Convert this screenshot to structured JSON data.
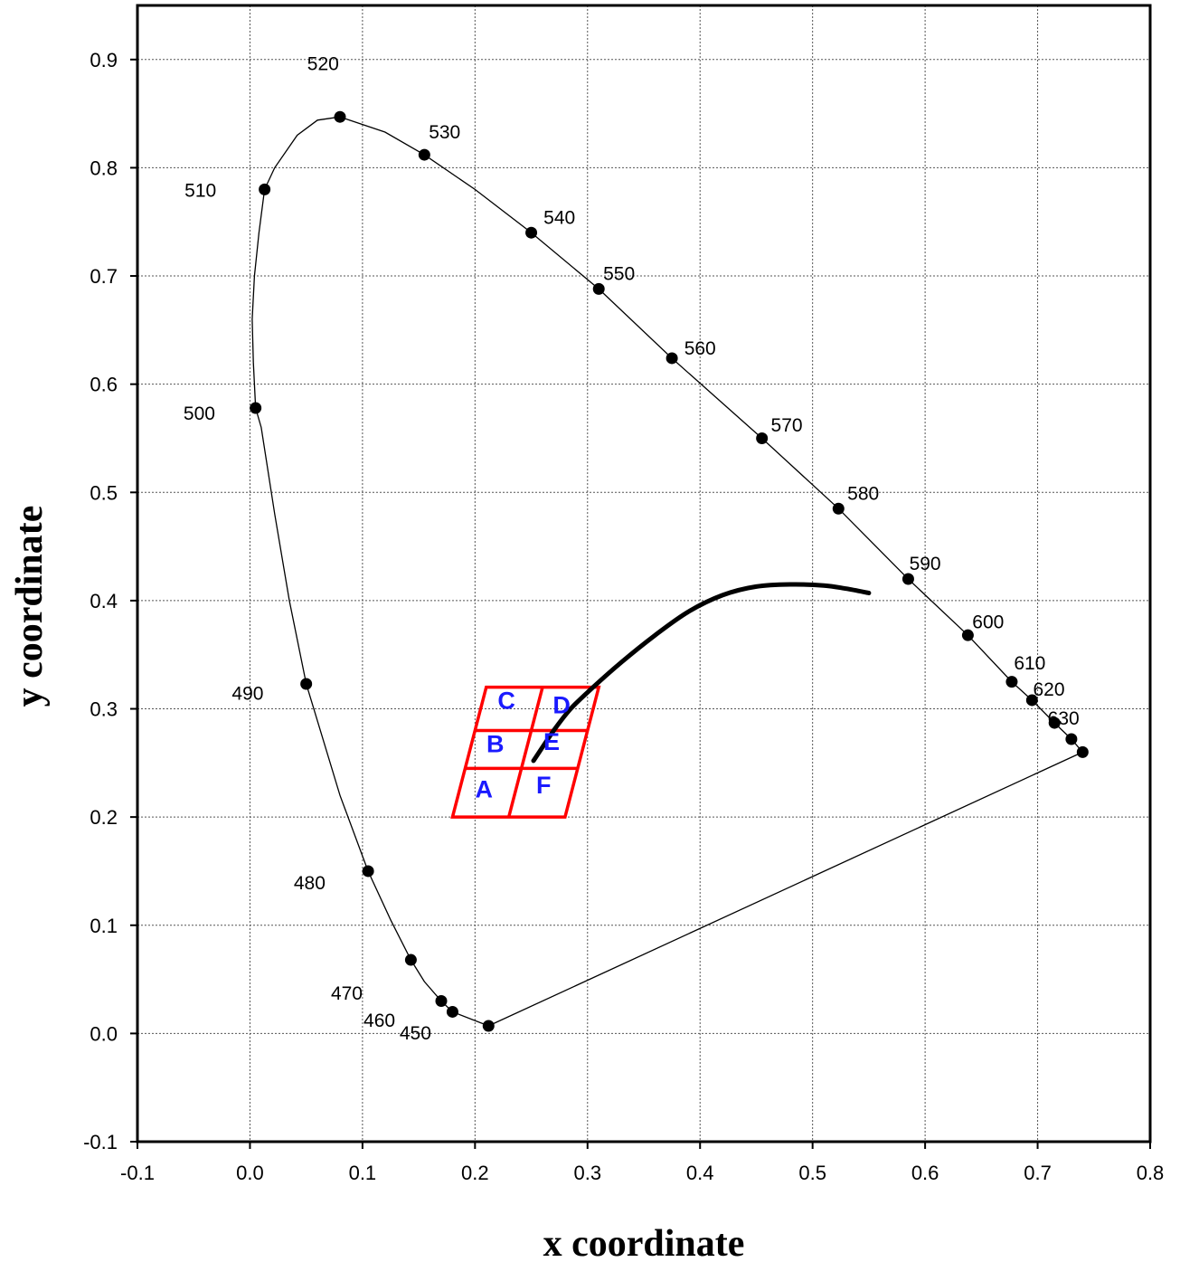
{
  "chart_data": {
    "type": "scatter",
    "title": "",
    "xlabel": "x coordinate",
    "ylabel": "y coordinate",
    "xlim": [
      -0.1,
      0.8
    ],
    "ylim": [
      -0.1,
      0.95
    ],
    "xticks": [
      "-0.1",
      "0.0",
      "0.1",
      "0.2",
      "0.3",
      "0.4",
      "0.5",
      "0.6",
      "0.7",
      "0.8"
    ],
    "yticks": [
      "-0.1",
      "0.0",
      "0.1",
      "0.2",
      "0.3",
      "0.4",
      "0.5",
      "0.6",
      "0.7",
      "0.8",
      "0.9"
    ],
    "grid": true,
    "spectral_locus": [
      [
        0.212,
        0.007
      ],
      [
        0.18,
        0.02
      ],
      [
        0.17,
        0.03
      ],
      [
        0.155,
        0.048
      ],
      [
        0.143,
        0.068
      ],
      [
        0.125,
        0.105
      ],
      [
        0.105,
        0.15
      ],
      [
        0.08,
        0.22
      ],
      [
        0.05,
        0.323
      ],
      [
        0.035,
        0.4
      ],
      [
        0.022,
        0.48
      ],
      [
        0.01,
        0.56
      ],
      [
        0.005,
        0.578
      ],
      [
        0.003,
        0.62
      ],
      [
        0.002,
        0.66
      ],
      [
        0.004,
        0.7
      ],
      [
        0.008,
        0.74
      ],
      [
        0.013,
        0.78
      ],
      [
        0.022,
        0.8
      ],
      [
        0.042,
        0.83
      ],
      [
        0.06,
        0.844
      ],
      [
        0.08,
        0.847
      ],
      [
        0.12,
        0.833
      ],
      [
        0.155,
        0.812
      ],
      [
        0.2,
        0.78
      ],
      [
        0.25,
        0.74
      ],
      [
        0.31,
        0.688
      ],
      [
        0.375,
        0.624
      ],
      [
        0.455,
        0.55
      ],
      [
        0.523,
        0.485
      ],
      [
        0.585,
        0.42
      ],
      [
        0.638,
        0.368
      ],
      [
        0.677,
        0.325
      ],
      [
        0.695,
        0.308
      ],
      [
        0.715,
        0.287
      ],
      [
        0.73,
        0.272
      ],
      [
        0.74,
        0.26
      ]
    ],
    "purple_line": [
      [
        0.74,
        0.26
      ],
      [
        0.212,
        0.007
      ]
    ],
    "wavelength_points": [
      {
        "label": "450",
        "x": 0.212,
        "y": 0.007,
        "lx": -0.065,
        "ly": -0.006
      },
      {
        "label": "460",
        "x": 0.18,
        "y": 0.02,
        "lx": -0.065,
        "ly": -0.007
      },
      {
        "label": "",
        "x": 0.17,
        "y": 0.03,
        "lx": 0,
        "ly": 0
      },
      {
        "label": "470",
        "x": 0.143,
        "y": 0.068,
        "lx": -0.057,
        "ly": -0.03
      },
      {
        "label": "480",
        "x": 0.105,
        "y": 0.15,
        "lx": -0.052,
        "ly": -0.01
      },
      {
        "label": "490",
        "x": 0.05,
        "y": 0.323,
        "lx": -0.052,
        "ly": -0.008
      },
      {
        "label": "500",
        "x": 0.005,
        "y": 0.578,
        "lx": -0.05,
        "ly": -0.004
      },
      {
        "label": "510",
        "x": 0.013,
        "y": 0.78,
        "lx": -0.057,
        "ly": 0
      },
      {
        "label": "520",
        "x": 0.08,
        "y": 0.847,
        "lx": -0.015,
        "ly": 0.05
      },
      {
        "label": "530",
        "x": 0.155,
        "y": 0.812,
        "lx": 0.018,
        "ly": 0.022
      },
      {
        "label": "540",
        "x": 0.25,
        "y": 0.74,
        "lx": 0.025,
        "ly": 0.015
      },
      {
        "label": "550",
        "x": 0.31,
        "y": 0.688,
        "lx": 0.018,
        "ly": 0.015
      },
      {
        "label": "560",
        "x": 0.375,
        "y": 0.624,
        "lx": 0.025,
        "ly": 0.01
      },
      {
        "label": "570",
        "x": 0.455,
        "y": 0.55,
        "lx": 0.022,
        "ly": 0.013
      },
      {
        "label": "580",
        "x": 0.523,
        "y": 0.485,
        "lx": 0.022,
        "ly": 0.015
      },
      {
        "label": "590",
        "x": 0.585,
        "y": 0.42,
        "lx": 0.015,
        "ly": 0.015
      },
      {
        "label": "600",
        "x": 0.638,
        "y": 0.368,
        "lx": 0.018,
        "ly": 0.013
      },
      {
        "label": "610",
        "x": 0.677,
        "y": 0.325,
        "lx": 0.016,
        "ly": 0.018
      },
      {
        "label": "620",
        "x": 0.695,
        "y": 0.308,
        "lx": 0.015,
        "ly": 0.011
      },
      {
        "label": "630",
        "x": 0.715,
        "y": 0.287,
        "lx": 0.008,
        "ly": 0.005
      },
      {
        "label": "",
        "x": 0.73,
        "y": 0.272,
        "lx": 0,
        "ly": 0
      },
      {
        "label": "",
        "x": 0.74,
        "y": 0.26,
        "lx": 0,
        "ly": 0
      }
    ],
    "planckian_locus": [
      [
        0.252,
        0.252
      ],
      [
        0.27,
        0.28
      ],
      [
        0.285,
        0.3
      ],
      [
        0.305,
        0.32
      ],
      [
        0.33,
        0.343
      ],
      [
        0.36,
        0.368
      ],
      [
        0.39,
        0.39
      ],
      [
        0.42,
        0.405
      ],
      [
        0.45,
        0.413
      ],
      [
        0.48,
        0.415
      ],
      [
        0.51,
        0.414
      ],
      [
        0.53,
        0.411
      ],
      [
        0.55,
        0.407
      ]
    ],
    "region_grid": {
      "color": "#ff0000",
      "bottom_left": [
        0.18,
        0.2
      ],
      "bottom_right": [
        0.28,
        0.2
      ],
      "top_left": [
        0.21,
        0.32
      ],
      "top_right": [
        0.31,
        0.32
      ],
      "mid_y": [
        0.245,
        0.28
      ]
    },
    "regions": [
      {
        "label": "A",
        "x": 0.208,
        "y": 0.218
      },
      {
        "label": "B",
        "x": 0.218,
        "y": 0.26
      },
      {
        "label": "C",
        "x": 0.228,
        "y": 0.3
      },
      {
        "label": "D",
        "x": 0.277,
        "y": 0.296
      },
      {
        "label": "E",
        "x": 0.268,
        "y": 0.262
      },
      {
        "label": "F",
        "x": 0.261,
        "y": 0.222
      }
    ]
  }
}
